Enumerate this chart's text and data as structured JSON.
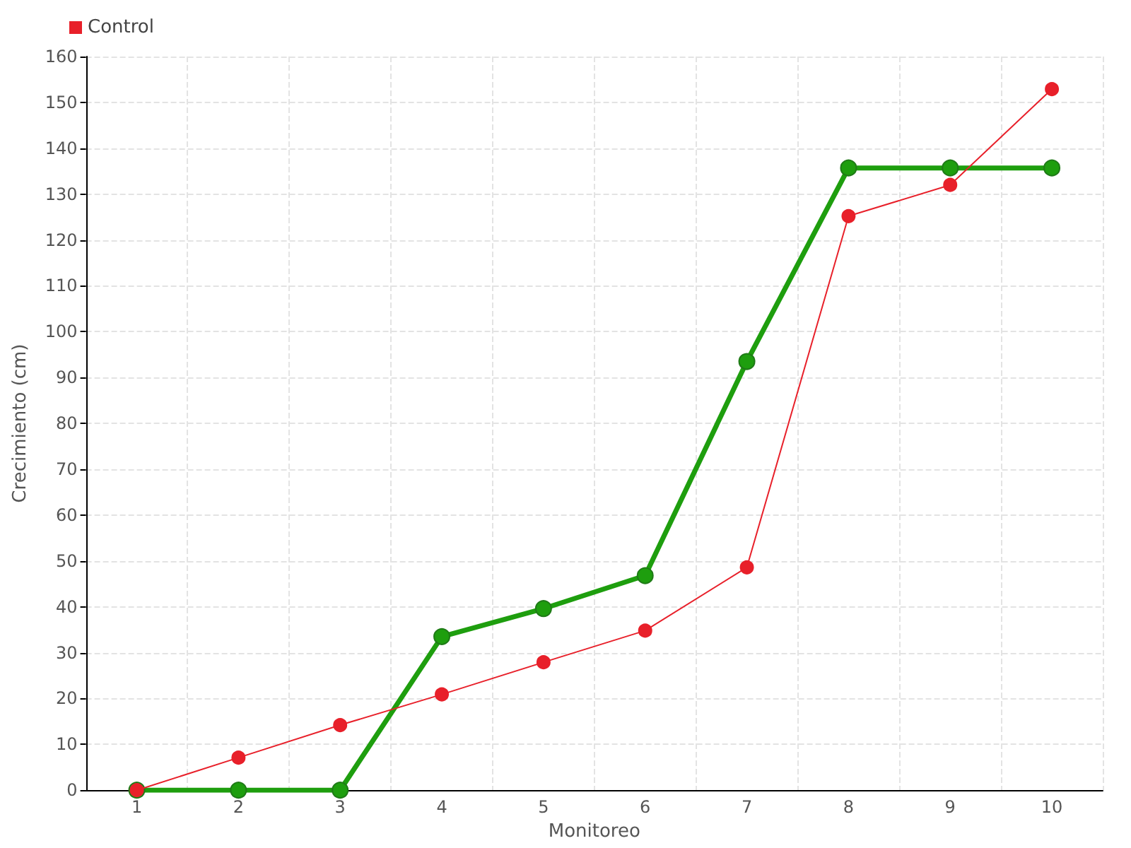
{
  "chart_data": {
    "type": "line",
    "xlabel": "Monitoreo",
    "ylabel": "Crecimiento (cm)",
    "categories": [
      "1",
      "2",
      "3",
      "4",
      "5",
      "6",
      "7",
      "8",
      "9",
      "10"
    ],
    "series": [
      {
        "color": "#1e9e0e",
        "values": [
          0,
          0,
          0,
          33.5,
          39.6,
          46.8,
          93.5,
          135.7,
          135.7,
          135.7
        ]
      },
      {
        "name": "Control",
        "color": "#e8202a",
        "values": [
          0,
          7.1,
          14.2,
          20.9,
          27.9,
          34.8,
          48.6,
          125.2,
          132,
          152.9
        ]
      }
    ],
    "ylim": [
      0,
      160
    ],
    "yticks": [
      0,
      10,
      20,
      30,
      40,
      50,
      60,
      70,
      80,
      90,
      100,
      110,
      120,
      130,
      140,
      150,
      160
    ],
    "grid": true,
    "legend": "top left",
    "marker": "circle",
    "line_style": "solid"
  }
}
